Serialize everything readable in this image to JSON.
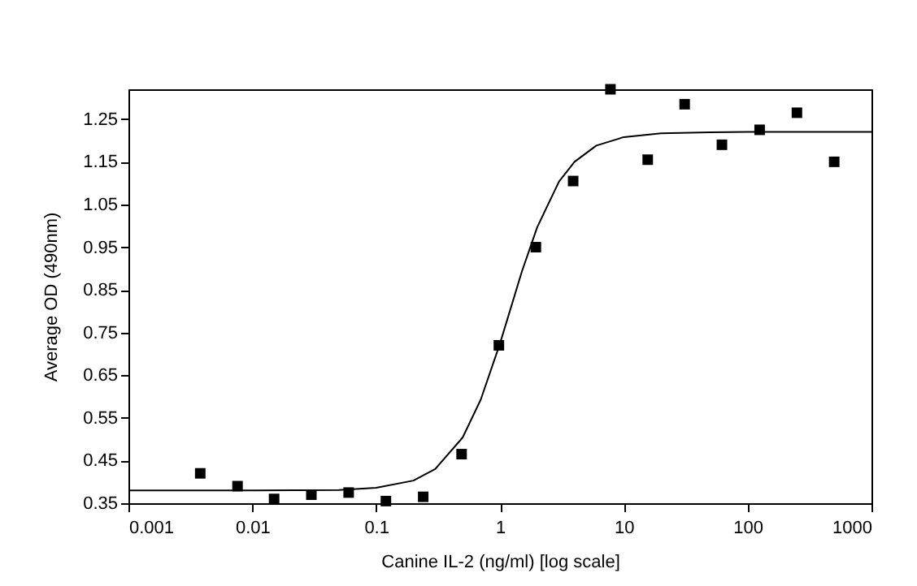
{
  "chart_data": {
    "type": "scatter",
    "xlabel": "Canine IL-2 (ng/ml) [log scale]",
    "ylabel": "Average OD (490nm)",
    "log": "x",
    "grid": false,
    "legend": false,
    "marker": "square",
    "xlim": [
      0.001,
      1000
    ],
    "xticks": [
      0.001,
      0.01,
      0.1,
      1,
      10,
      100,
      1000
    ],
    "ylim": [
      0.35,
      1.32
    ],
    "yticks": [
      0.35,
      0.45,
      0.55,
      0.65,
      0.75,
      0.85,
      0.95,
      1.05,
      1.15,
      1.25
    ],
    "series": [
      {
        "type": "scatter",
        "color": "#000000",
        "x": [
          0.0038,
          0.0076,
          0.015,
          0.03,
          0.06,
          0.12,
          0.24,
          0.49,
          0.98,
          1.95,
          3.9,
          7.8,
          15.6,
          31,
          62,
          125,
          250,
          500
        ],
        "values": [
          0.42,
          0.39,
          0.36,
          0.37,
          0.375,
          0.355,
          0.365,
          0.465,
          0.72,
          0.95,
          1.105,
          1.32,
          1.155,
          1.285,
          1.19,
          1.225,
          1.265,
          1.15
        ]
      },
      {
        "type": "line",
        "color": "#000000",
        "marker": "none",
        "line_style": "solid",
        "x": [
          0.001,
          0.01,
          0.05,
          0.1,
          0.2,
          0.3,
          0.5,
          0.7,
          1,
          1.5,
          2,
          3,
          4,
          6,
          10,
          20,
          50,
          100,
          1000
        ],
        "values": [
          0.38,
          0.38,
          0.381,
          0.386,
          0.403,
          0.43,
          0.504,
          0.593,
          0.724,
          0.892,
          0.997,
          1.104,
          1.15,
          1.188,
          1.208,
          1.217,
          1.219,
          1.22,
          1.22
        ]
      }
    ]
  }
}
